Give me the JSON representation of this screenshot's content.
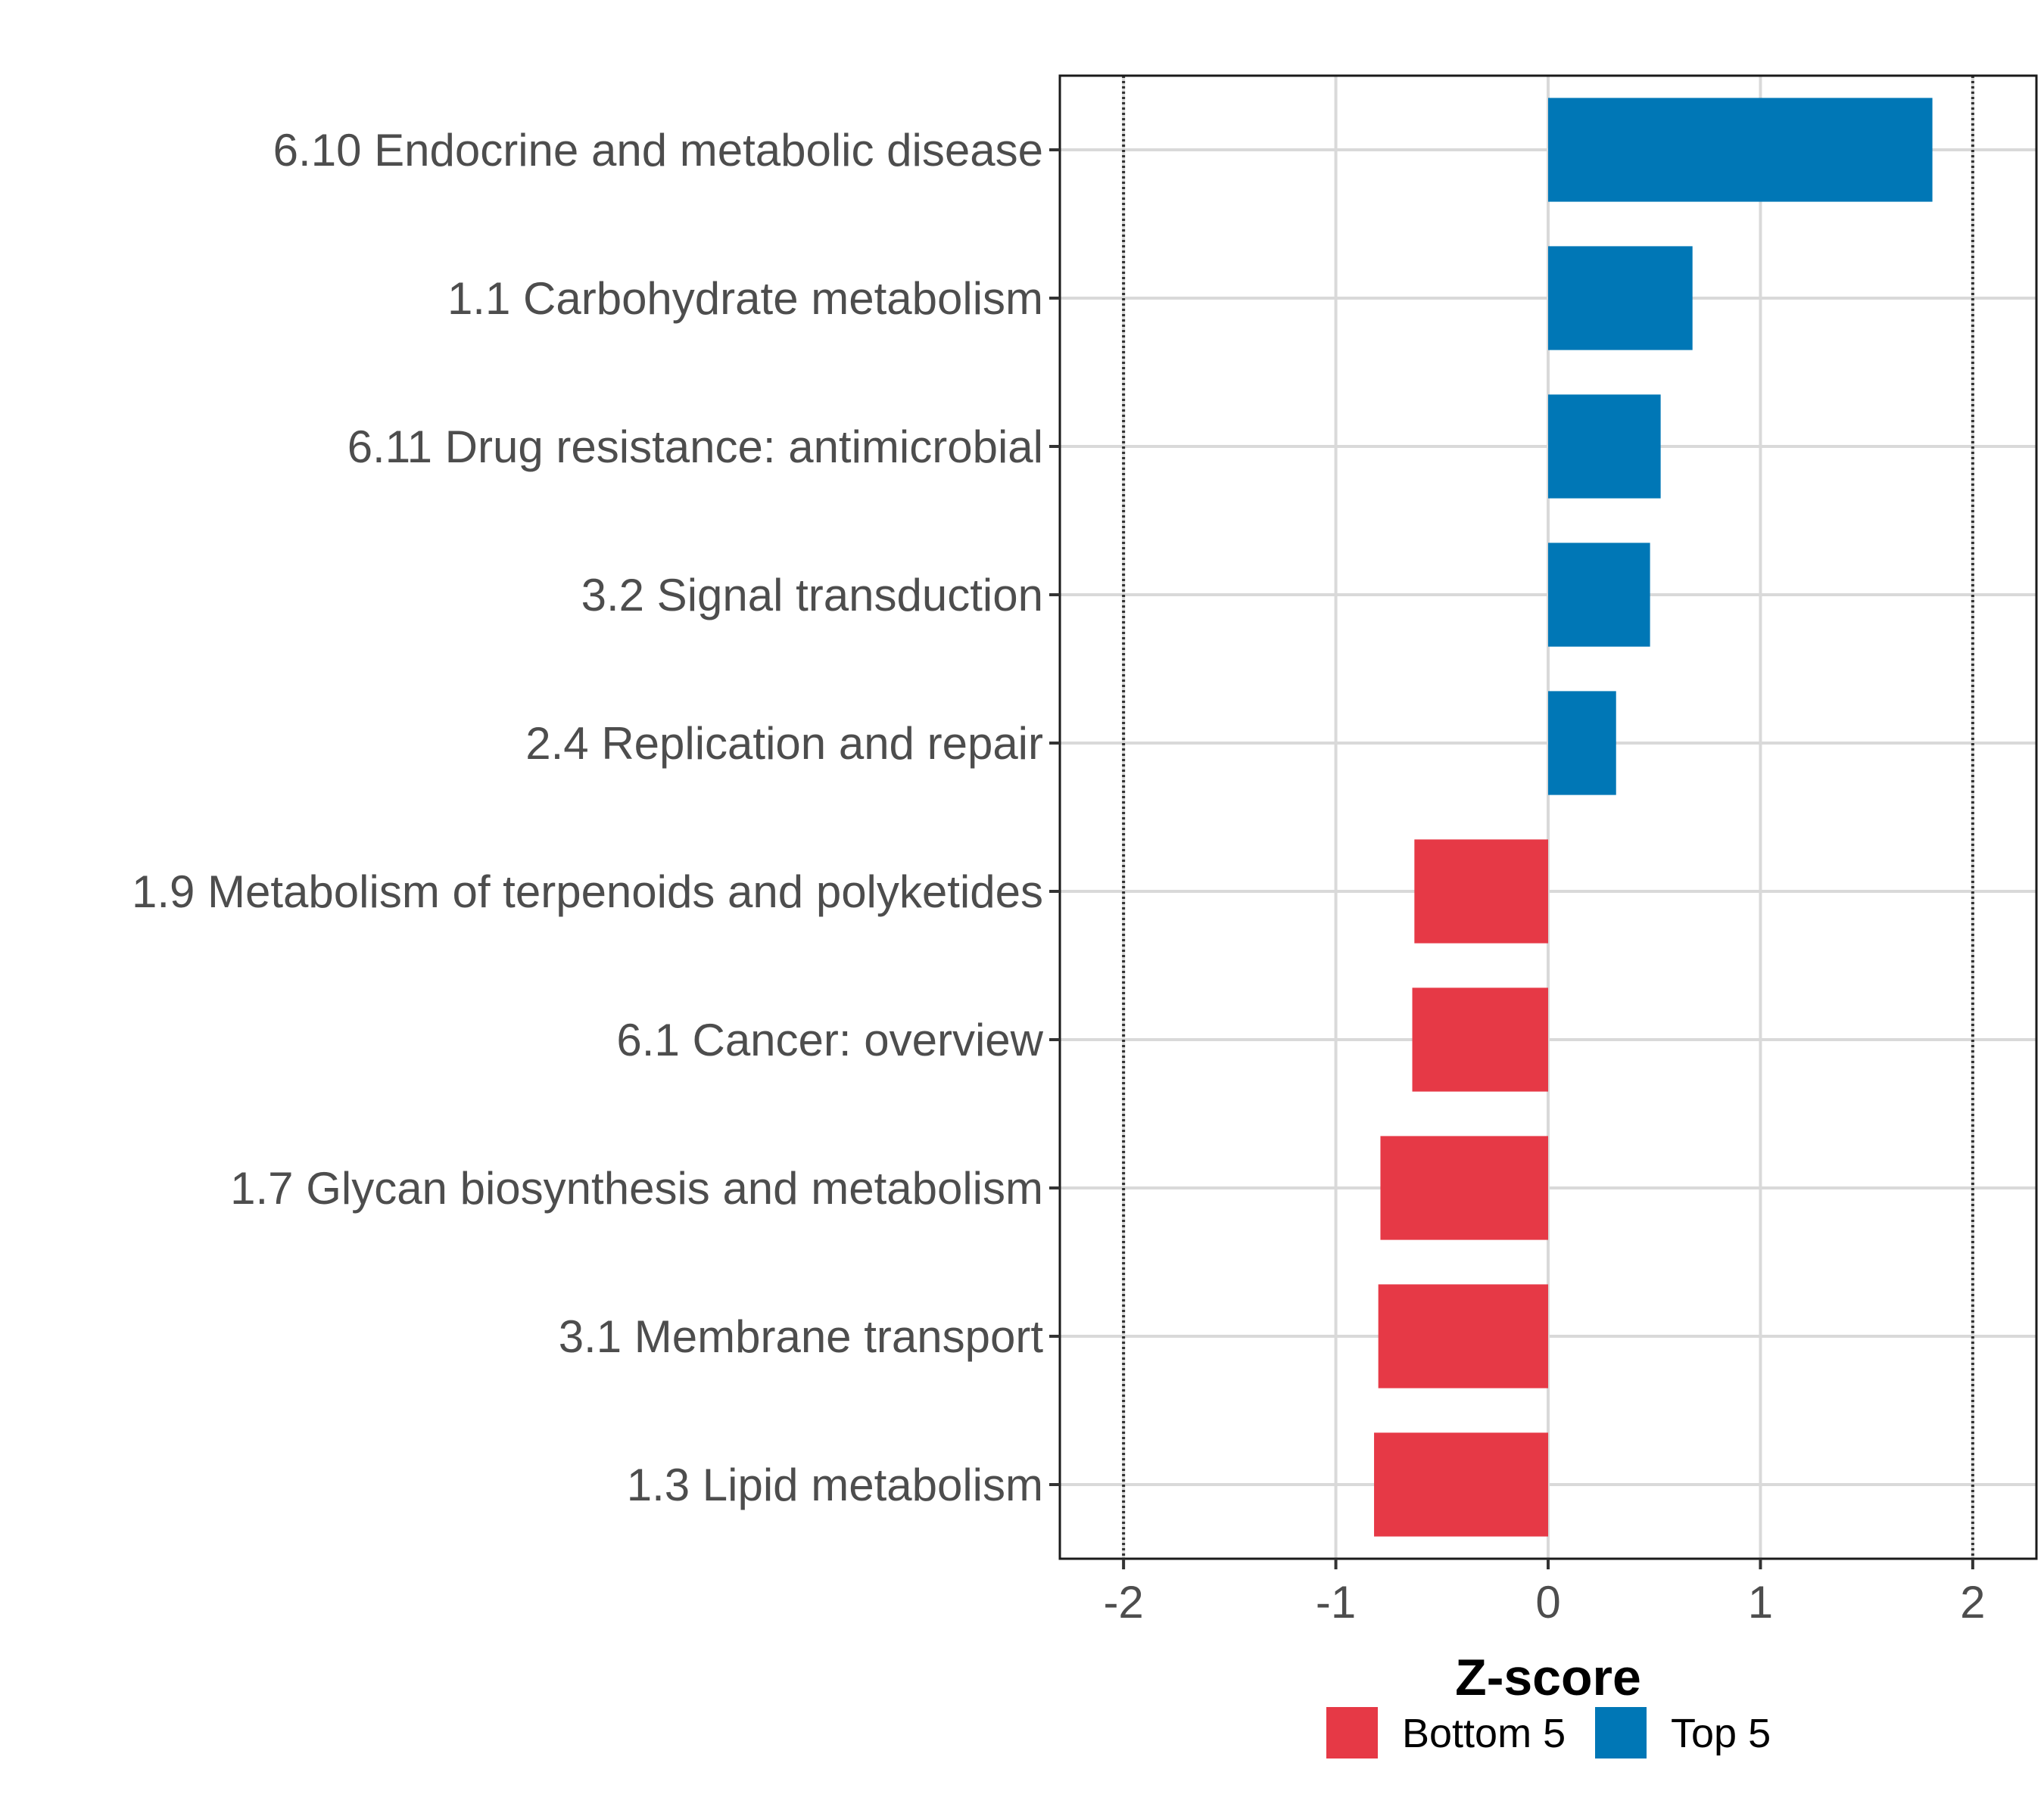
{
  "chart_data": {
    "type": "bar",
    "orientation": "horizontal",
    "title": "",
    "xlabel": "Z-score",
    "ylabel": "",
    "xlim": [
      -2.3,
      2.3
    ],
    "x_ticks": [
      -2,
      -1,
      0,
      1,
      2
    ],
    "x_tick_labels": [
      "-2",
      "-1",
      "0",
      "1",
      "2"
    ],
    "reference_lines": [
      -2,
      2
    ],
    "grid": true,
    "legend_position": "bottom",
    "categories": [
      "6.10 Endocrine and metabolic disease",
      "1.1 Carbohydrate metabolism",
      "6.11 Drug resistance: antimicrobial",
      "3.2 Signal transduction",
      "2.4 Replication and repair",
      "1.9 Metabolism of terpenoids and polyketides",
      "6.1 Cancer: overview",
      "1.7 Glycan biosynthesis and metabolism",
      "3.1 Membrane transport",
      "1.3 Lipid metabolism"
    ],
    "values": [
      1.81,
      0.68,
      0.53,
      0.48,
      0.32,
      -0.63,
      -0.64,
      -0.79,
      -0.8,
      -0.82
    ],
    "groups": [
      "Top 5",
      "Top 5",
      "Top 5",
      "Top 5",
      "Top 5",
      "Bottom 5",
      "Bottom 5",
      "Bottom 5",
      "Bottom 5",
      "Bottom 5"
    ],
    "legend": [
      {
        "name": "Bottom 5",
        "color": "#e63946"
      },
      {
        "name": "Top 5",
        "color": "#0077b6"
      }
    ]
  }
}
